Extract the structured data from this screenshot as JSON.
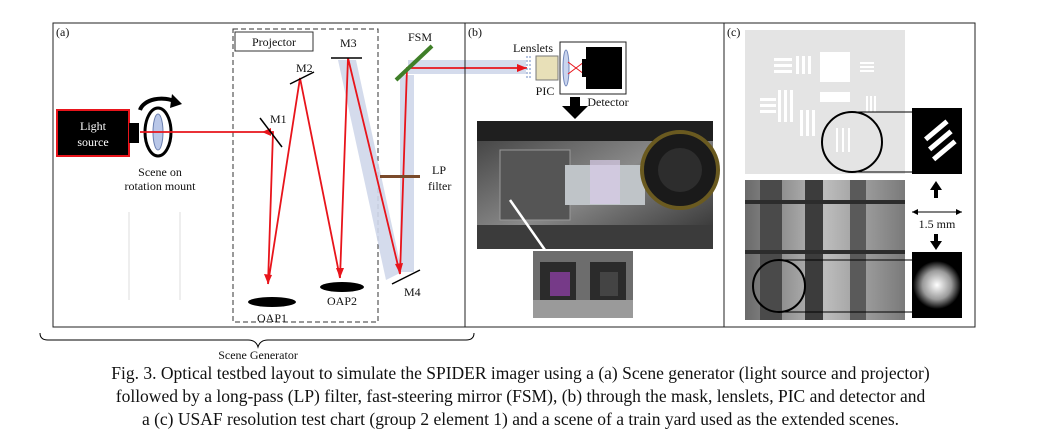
{
  "panels": {
    "a": {
      "label": "(a)",
      "light_source": "Light source",
      "scene_mount": [
        "Scene on",
        "rotation mount"
      ],
      "projector": "Projector",
      "mirrors": {
        "m1": "M1",
        "m2": "M2",
        "m3": "M3",
        "m4": "M4",
        "oap1": "OAP1",
        "oap2": "OAP2",
        "fsm": "FSM"
      },
      "lp_filter": [
        "LP",
        "filter"
      ],
      "scene_generator": "Scene Generator"
    },
    "b": {
      "label": "(b)",
      "lenslets": "Lenslets",
      "pic": "PIC",
      "detector": "Detector"
    },
    "c": {
      "label": "(c)",
      "scale": "1.5 mm"
    }
  },
  "caption": [
    "Fig. 3. Optical testbed layout to simulate the SPIDER imager using a (a) Scene generator (light source and projector)",
    "followed by a long-pass (LP) filter, fast-steering mirror (FSM), (b) through the mask, lenslets, PIC and detector and",
    "a (c) USAF resolution test chart (group 2 element 1) and a scene of a train yard used as the extended scenes."
  ],
  "colors": {
    "beam": "#e8141b",
    "beam_shade": "#cfd7ea",
    "fsm": "#3f7f28",
    "lp_filter": "#7a4a2a"
  }
}
